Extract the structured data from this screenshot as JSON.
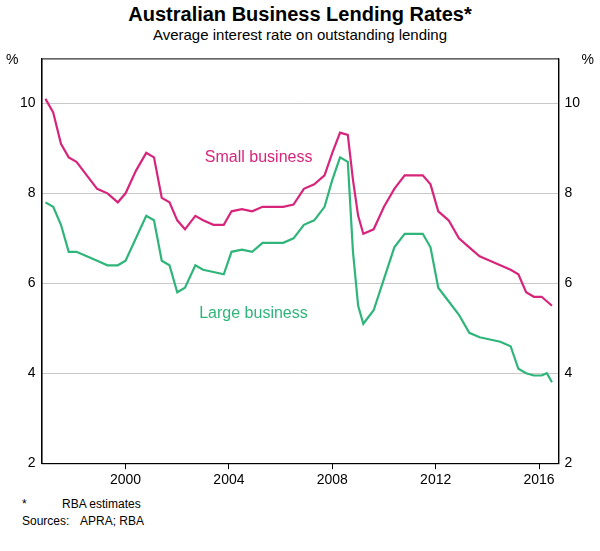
{
  "chart_data": {
    "type": "line",
    "title": "Australian Business Lending Rates*",
    "subtitle": "Average interest rate on outstanding lending",
    "y_label": "%",
    "footnote": [
      "*",
      "RBA estimates"
    ],
    "sources": [
      "Sources:",
      "APRA; RBA"
    ],
    "x": [
      1996.9,
      1997.2,
      1997.5,
      1997.8,
      1998.1,
      1998.5,
      1998.9,
      1999.3,
      1999.7,
      2000.0,
      2000.4,
      2000.8,
      2001.1,
      2001.4,
      2001.7,
      2002.0,
      2002.3,
      2002.7,
      2003.0,
      2003.4,
      2003.8,
      2004.1,
      2004.5,
      2004.9,
      2005.3,
      2005.7,
      2006.1,
      2006.5,
      2006.9,
      2007.3,
      2007.7,
      2008.0,
      2008.3,
      2008.6,
      2008.8,
      2009.0,
      2009.2,
      2009.6,
      2010.0,
      2010.4,
      2010.8,
      2011.2,
      2011.5,
      2011.8,
      2012.1,
      2012.5,
      2012.9,
      2013.3,
      2013.7,
      2014.1,
      2014.5,
      2014.9,
      2015.2,
      2015.5,
      2015.8,
      2016.1,
      2016.3,
      2016.5
    ],
    "series": [
      {
        "name": "Small business",
        "color": "#d6257b",
        "values": [
          10.1,
          9.8,
          9.1,
          8.8,
          8.7,
          8.4,
          8.1,
          8.0,
          7.8,
          8.0,
          8.5,
          8.9,
          8.8,
          7.9,
          7.8,
          7.4,
          7.2,
          7.5,
          7.4,
          7.3,
          7.3,
          7.6,
          7.65,
          7.6,
          7.7,
          7.7,
          7.7,
          7.75,
          8.1,
          8.2,
          8.4,
          8.9,
          9.35,
          9.3,
          8.3,
          7.5,
          7.1,
          7.2,
          7.7,
          8.1,
          8.4,
          8.4,
          8.4,
          8.2,
          7.6,
          7.4,
          7.0,
          6.8,
          6.6,
          6.5,
          6.4,
          6.3,
          6.2,
          5.8,
          5.7,
          5.7,
          5.6,
          5.5
        ]
      },
      {
        "name": "Large business",
        "color": "#2fb57a",
        "values": [
          7.8,
          7.7,
          7.3,
          6.7,
          6.7,
          6.6,
          6.5,
          6.4,
          6.4,
          6.5,
          7.0,
          7.5,
          7.4,
          6.5,
          6.4,
          5.8,
          5.9,
          6.4,
          6.3,
          6.25,
          6.2,
          6.7,
          6.75,
          6.7,
          6.9,
          6.9,
          6.9,
          7.0,
          7.3,
          7.4,
          7.7,
          8.3,
          8.8,
          8.7,
          6.7,
          5.5,
          5.1,
          5.4,
          6.1,
          6.8,
          7.1,
          7.1,
          7.1,
          6.8,
          5.9,
          5.6,
          5.3,
          4.9,
          4.8,
          4.75,
          4.7,
          4.6,
          4.1,
          4.0,
          3.95,
          3.95,
          4.0,
          3.8
        ]
      }
    ],
    "xlim": [
      1996.75,
      2016.75
    ],
    "xticks": [
      2000,
      2004,
      2008,
      2012,
      2016
    ],
    "ylim": [
      2,
      11
    ],
    "yticks": [
      2,
      4,
      6,
      8,
      10
    ],
    "grid": true
  }
}
